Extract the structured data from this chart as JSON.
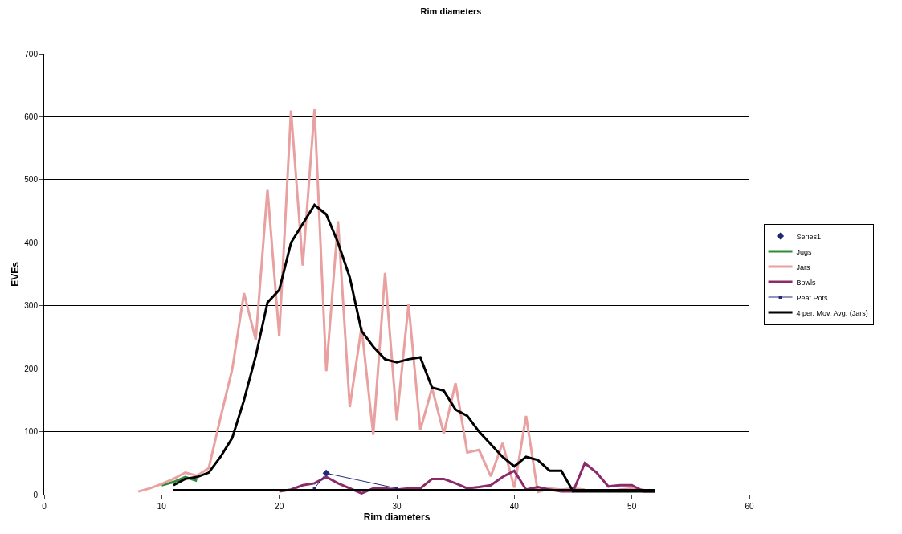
{
  "chart_data": {
    "type": "line",
    "title": "Rim diameters",
    "xlabel": "Rim diameters",
    "ylabel": "EVEs",
    "xlim": [
      0,
      60
    ],
    "xticks": [
      0,
      10,
      20,
      30,
      40,
      50,
      60
    ],
    "ylim": [
      0,
      700
    ],
    "yticks": [
      0,
      100,
      200,
      300,
      400,
      500,
      600,
      700
    ],
    "grid": "y",
    "legend": "right",
    "series": [
      {
        "name": "Series1",
        "type": "scatter",
        "marker": "diamond",
        "color": "#1f2a6e",
        "x": [
          24
        ],
        "values": [
          34
        ]
      },
      {
        "name": "Jugs",
        "color": "#2e8b3a",
        "marker": "none",
        "x": [
          10,
          11,
          12,
          13
        ],
        "values": [
          15,
          20,
          28,
          22
        ]
      },
      {
        "name": "Jars",
        "color": "#e8a0a0",
        "marker": "none",
        "x": [
          8,
          9,
          10,
          11,
          12,
          13,
          14,
          15,
          16,
          17,
          18,
          19,
          20,
          21,
          22,
          23,
          24,
          25,
          26,
          27,
          28,
          29,
          30,
          31,
          32,
          33,
          34,
          35,
          36,
          37,
          38,
          39,
          40,
          41,
          42,
          43,
          44,
          45,
          46,
          47,
          48,
          49,
          50,
          51
        ],
        "values": [
          5,
          10,
          17,
          25,
          35,
          30,
          42,
          122,
          199,
          320,
          246,
          485,
          252,
          610,
          364,
          612,
          196,
          434,
          139,
          266,
          95,
          352,
          118,
          303,
          103,
          169,
          97,
          177,
          67,
          71,
          29,
          82,
          11,
          125,
          4,
          10,
          8,
          10,
          8,
          null,
          5,
          8,
          10,
          8
        ]
      },
      {
        "name": "Bowls",
        "color": "#8b2a6a",
        "marker": "none",
        "x": [
          20,
          21,
          22,
          23,
          24,
          25,
          26,
          27,
          28,
          29,
          30,
          31,
          32,
          33,
          34,
          35,
          36,
          37,
          38,
          39,
          40,
          41,
          42,
          43,
          44,
          45,
          46,
          47,
          48,
          49,
          50,
          51,
          52
        ],
        "values": [
          5,
          8,
          15,
          18,
          28,
          18,
          10,
          2,
          10,
          10,
          8,
          10,
          10,
          25,
          25,
          18,
          10,
          12,
          15,
          28,
          38,
          8,
          12,
          8,
          5,
          5,
          50,
          35,
          13,
          15,
          15,
          5,
          5
        ]
      },
      {
        "name": "Peat Pots",
        "color": "#1f2a80",
        "marker": "square",
        "x": [
          23,
          24,
          30
        ],
        "values": [
          10,
          34,
          10
        ]
      },
      {
        "name": "4 per. Mov. Avg. (Jars)",
        "color": "#000000",
        "marker": "none",
        "x": [
          11,
          12,
          13,
          14,
          15,
          16,
          17,
          18,
          19,
          20,
          21,
          22,
          23,
          24,
          25,
          26,
          27,
          28,
          29,
          30,
          31,
          32,
          33,
          34,
          35,
          36,
          37,
          38,
          39,
          40,
          41,
          42,
          43,
          44,
          45,
          46,
          47,
          48,
          49,
          50,
          51,
          52
        ],
        "values": [
          15,
          25,
          28,
          35,
          60,
          90,
          150,
          220,
          305,
          325,
          400,
          430,
          460,
          445,
          400,
          345,
          260,
          235,
          215,
          210,
          215,
          218,
          170,
          165,
          135,
          125,
          100,
          80,
          60,
          45,
          60,
          55,
          38,
          38,
          5,
          5,
          5,
          5,
          5,
          5,
          5,
          5
        ]
      },
      {
        "color": "#000000",
        "marker": "none",
        "x": [
          11,
          52
        ],
        "values": [
          7,
          7
        ]
      }
    ]
  }
}
